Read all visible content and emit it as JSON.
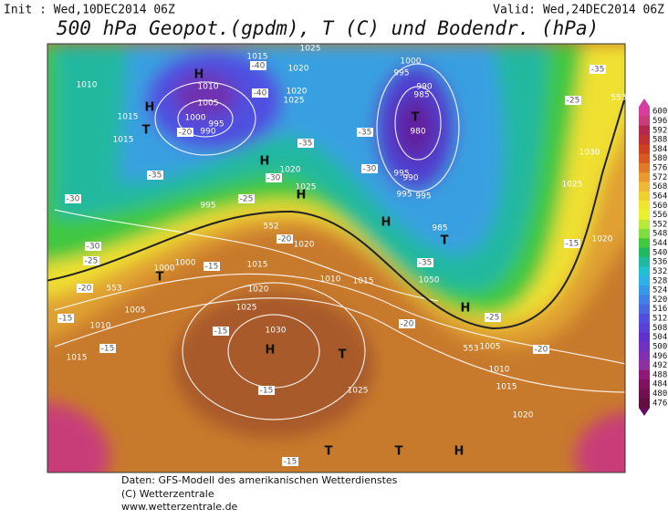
{
  "header": {
    "init": "Init : Wed,10DEC2014 06Z",
    "valid": "Valid: Wed,24DEC2014 06Z",
    "title": "500 hPa Geopot.(gpdm), T (C) und Bodendr. (hPa)"
  },
  "legend": {
    "levels": [
      "600",
      "596",
      "592",
      "588",
      "584",
      "580",
      "576",
      "572",
      "568",
      "564",
      "560",
      "556",
      "552",
      "548",
      "544",
      "540",
      "536",
      "532",
      "528",
      "524",
      "520",
      "516",
      "512",
      "508",
      "504",
      "500",
      "496",
      "492",
      "488",
      "484",
      "480",
      "476"
    ]
  },
  "map": {
    "labels": [
      "1010",
      "1015",
      "1015",
      "1010",
      "1005",
      "1000",
      "995",
      "990",
      "-20",
      "1015",
      "-40",
      "1020",
      "1025",
      "1020",
      "1025",
      "-40",
      "-35",
      "1020",
      "1025",
      "-30",
      "-35",
      "-30",
      "995",
      "-25",
      "1000",
      "995",
      "990",
      "985",
      "980",
      "-35",
      "-30",
      "995",
      "990",
      "995",
      "995",
      "985",
      "-35",
      "1050",
      "1010",
      "1015",
      "1020",
      "-20",
      "1015",
      "-15",
      "1000",
      "1000",
      "-20",
      "553",
      "-25",
      "-30",
      "1005",
      "1010",
      "-15",
      "1015",
      "-15",
      "1020",
      "-15",
      "1025",
      "1030",
      "-15",
      "1025",
      "-20",
      "-25",
      "1005",
      "1010",
      "1015",
      "1020",
      "-20",
      "1030",
      "1025",
      "1020",
      "-15",
      "-35",
      "-25",
      "553",
      "552",
      "553",
      "-15",
      "H",
      "H",
      "H",
      "T",
      "H",
      "T",
      "H",
      "T",
      "H",
      "H",
      "T",
      "T",
      "T",
      "H",
      "T"
    ]
  },
  "footer": {
    "lines": [
      "Daten: GFS-Modell des amerikanischen Wetterdienstes",
      "(C) Wetterzentrale",
      "www.wetterzentrale.de"
    ]
  }
}
